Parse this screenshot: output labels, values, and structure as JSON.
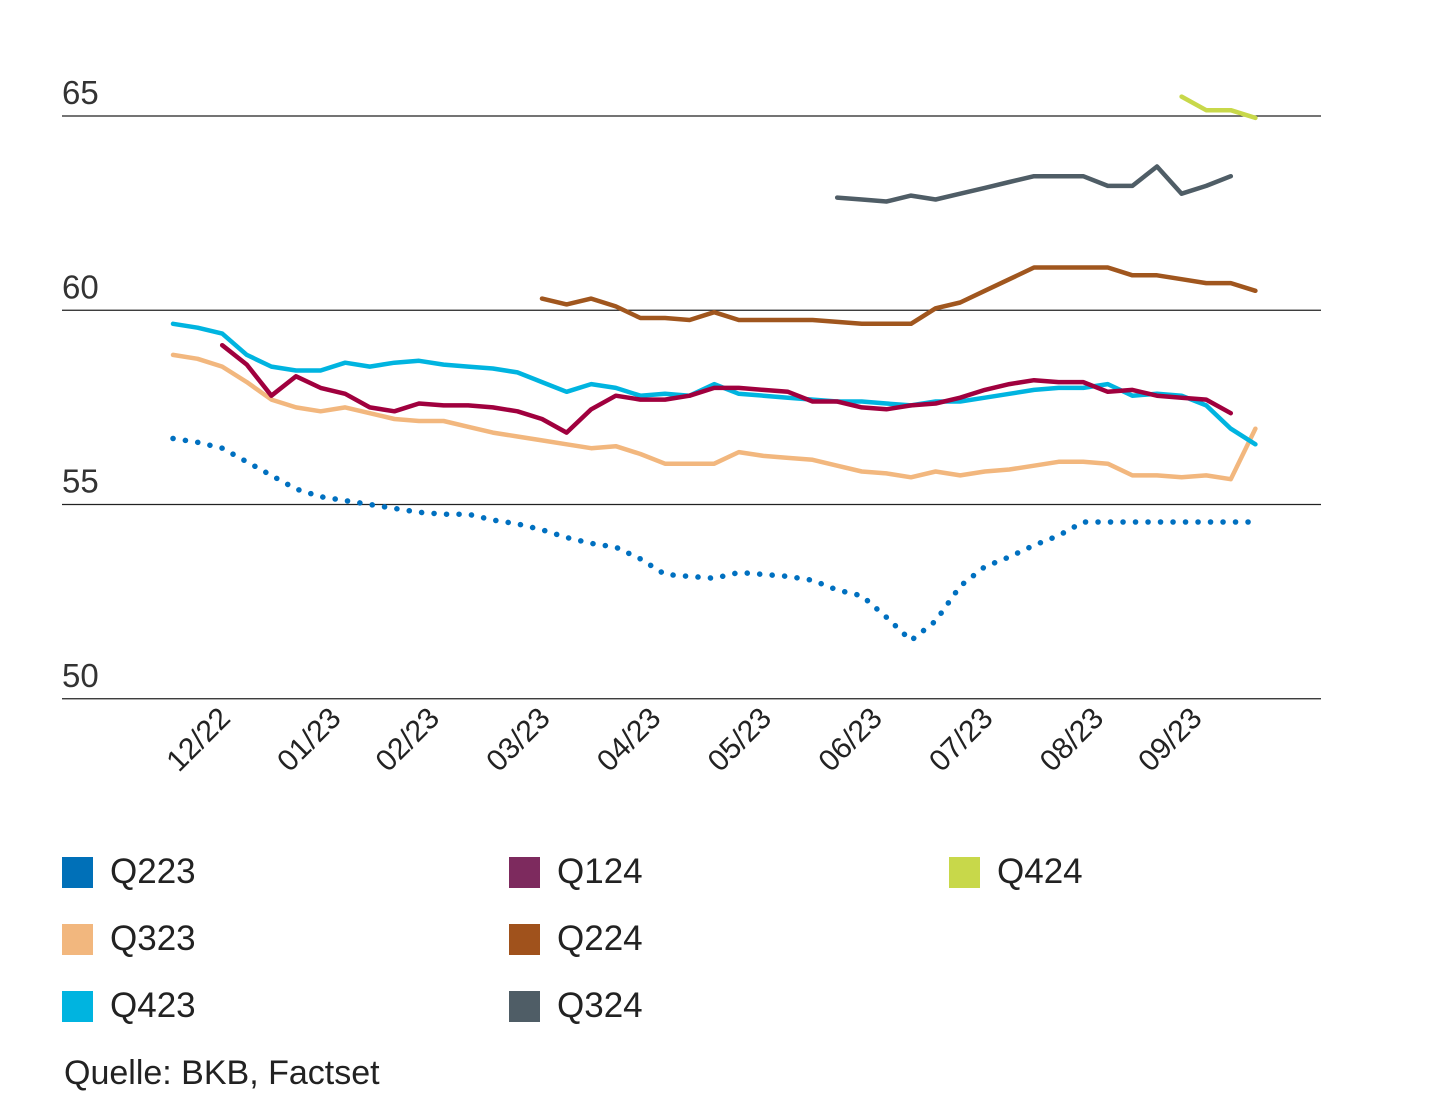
{
  "chart_data": {
    "type": "line",
    "title": "",
    "xlabel": "",
    "ylabel": "",
    "ylim": [
      50,
      65
    ],
    "yticks": [
      50,
      55,
      60,
      65
    ],
    "grid": "horizontal",
    "x_index_range": [
      0,
      44
    ],
    "xtick_labels": [
      "12/22",
      "01/23",
      "02/23",
      "03/23",
      "04/23",
      "05/23",
      "06/23",
      "07/23",
      "08/23",
      "09/23"
    ],
    "xtick_index": [
      1.5,
      6,
      10,
      14.5,
      19,
      23.5,
      28,
      32.5,
      37,
      41
    ],
    "legend_position": "bottom",
    "series": [
      {
        "name": "Q223",
        "color": "#0070c0",
        "legend_color": "#0070b8",
        "style": "dotted",
        "start": 0,
        "values": [
          56.7,
          56.6,
          56.45,
          56.1,
          55.75,
          55.4,
          55.2,
          55.1,
          55.0,
          54.9,
          54.8,
          54.75,
          54.75,
          54.6,
          54.5,
          54.35,
          54.15,
          54.0,
          53.9,
          53.6,
          53.2,
          53.15,
          53.1,
          53.25,
          53.2,
          53.15,
          53.05,
          52.8,
          52.65,
          52.1,
          51.5,
          52.0,
          52.9,
          53.4,
          53.65,
          53.95,
          54.2,
          54.55,
          54.55,
          54.55,
          54.55,
          54.55,
          54.55,
          54.55,
          54.55
        ]
      },
      {
        "name": "Q323",
        "color": "#f2b77e",
        "legend_color": "#f2b77e",
        "style": "solid",
        "start": 0,
        "values": [
          58.85,
          58.75,
          58.55,
          58.15,
          57.7,
          57.5,
          57.4,
          57.5,
          57.35,
          57.2,
          57.15,
          57.15,
          57.0,
          56.85,
          56.75,
          56.65,
          56.55,
          56.45,
          56.5,
          56.3,
          56.05,
          56.05,
          56.05,
          56.35,
          56.25,
          56.2,
          56.15,
          56.0,
          55.85,
          55.8,
          55.7,
          55.85,
          55.75,
          55.85,
          55.9,
          56.0,
          56.1,
          56.1,
          56.05,
          55.75,
          55.75,
          55.7,
          55.75,
          55.65,
          56.95
        ]
      },
      {
        "name": "Q423",
        "color": "#00b4e0",
        "legend_color": "#00b4e0",
        "style": "solid",
        "start": 0,
        "values": [
          59.65,
          59.55,
          59.4,
          58.85,
          58.55,
          58.45,
          58.45,
          58.65,
          58.55,
          58.65,
          58.7,
          58.6,
          58.55,
          58.5,
          58.4,
          58.15,
          57.9,
          58.1,
          58.0,
          57.8,
          57.85,
          57.8,
          58.1,
          57.85,
          57.8,
          57.75,
          57.7,
          57.65,
          57.65,
          57.6,
          57.55,
          57.65,
          57.65,
          57.75,
          57.85,
          57.95,
          58.0,
          58.0,
          58.1,
          57.8,
          57.85,
          57.8,
          57.55,
          56.95,
          56.55
        ]
      },
      {
        "name": "Q124",
        "color": "#a0003e",
        "legend_color": "#7d2a5e",
        "style": "solid",
        "start": 2,
        "values": [
          59.1,
          58.6,
          57.8,
          58.3,
          58.0,
          57.85,
          57.5,
          57.4,
          57.6,
          57.55,
          57.55,
          57.5,
          57.4,
          57.2,
          56.85,
          57.45,
          57.8,
          57.7,
          57.7,
          57.8,
          58.0,
          58.0,
          57.95,
          57.9,
          57.65,
          57.65,
          57.5,
          57.45,
          57.55,
          57.6,
          57.75,
          57.95,
          58.1,
          58.2,
          58.15,
          58.15,
          57.9,
          57.95,
          57.8,
          57.75,
          57.7,
          57.35
        ]
      },
      {
        "name": "Q224",
        "color": "#a0561e",
        "legend_color": "#a0521c",
        "style": "solid",
        "start": 15,
        "values": [
          60.3,
          60.15,
          60.3,
          60.1,
          59.8,
          59.8,
          59.75,
          59.95,
          59.75,
          59.75,
          59.75,
          59.75,
          59.7,
          59.65,
          59.65,
          59.65,
          60.05,
          60.2,
          60.5,
          60.8,
          61.1,
          61.1,
          61.1,
          61.1,
          60.9,
          60.9,
          60.8,
          60.7,
          60.7,
          60.5
        ]
      },
      {
        "name": "Q324",
        "color": "#4f5d66",
        "legend_color": "#4f5d66",
        "style": "solid",
        "start": 27,
        "values": [
          62.9,
          62.85,
          62.8,
          62.95,
          62.85,
          63.0,
          63.15,
          63.3,
          63.45,
          63.45,
          63.45,
          63.2,
          63.2,
          63.7,
          63.0,
          63.2,
          63.45
        ]
      },
      {
        "name": "Q424",
        "color": "#c8d84a",
        "legend_color": "#c8d84a",
        "style": "solid",
        "start": 41,
        "values": [
          65.5,
          65.15,
          65.15,
          64.95
        ]
      }
    ]
  },
  "legend": [
    {
      "label": "Q223"
    },
    {
      "label": "Q124"
    },
    {
      "label": "Q424"
    },
    {
      "label": "Q323"
    },
    {
      "label": "Q224"
    },
    {
      "label": "Q423"
    },
    {
      "label": "Q324"
    }
  ],
  "source": "Quelle: BKB, Factset"
}
